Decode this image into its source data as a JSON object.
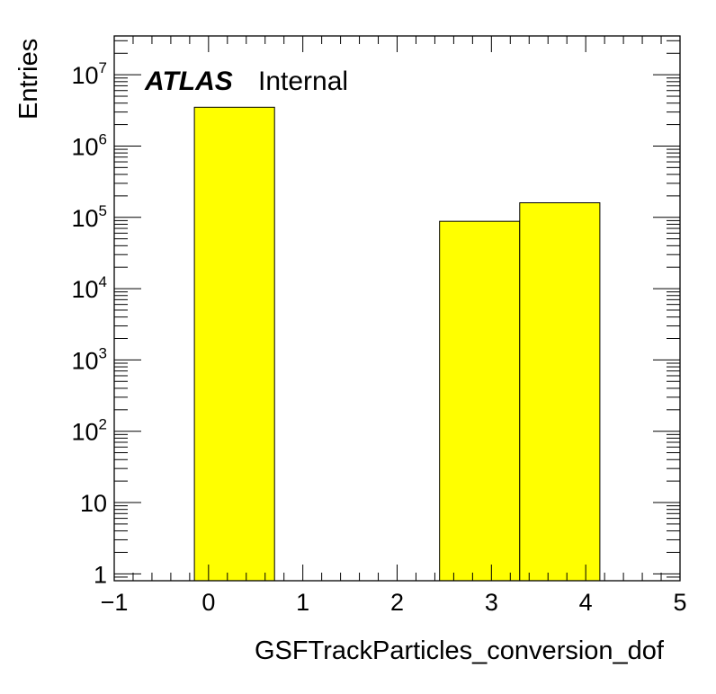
{
  "chart_data": {
    "type": "bar",
    "title": "",
    "xlabel": "GSFTrackParticles_conversion_dof",
    "ylabel": "Entries",
    "ylog": true,
    "xlim": [
      -1,
      5
    ],
    "ylim": [
      0.8,
      35000000
    ],
    "bins": [
      {
        "low": -0.15,
        "high": 0.7,
        "value": 3500000
      },
      {
        "low": 0.7,
        "high": 2.45,
        "value": 0
      },
      {
        "low": 2.45,
        "high": 3.3,
        "value": 88000
      },
      {
        "low": 3.3,
        "high": 4.15,
        "value": 160000
      }
    ],
    "fill_color": "#ffff00",
    "edge_color": "#000000",
    "x_tick_labels": [
      "−1",
      "0",
      "1",
      "2",
      "3",
      "4",
      "5"
    ],
    "y_tick_labels": [
      {
        "value": 1,
        "base": "1",
        "exp": ""
      },
      {
        "value": 10,
        "base": "10",
        "exp": ""
      },
      {
        "value": 100,
        "base": "10",
        "exp": "2"
      },
      {
        "value": 1000,
        "base": "10",
        "exp": "3"
      },
      {
        "value": 10000,
        "base": "10",
        "exp": "4"
      },
      {
        "value": 100000,
        "base": "10",
        "exp": "5"
      },
      {
        "value": 1000000,
        "base": "10",
        "exp": "6"
      },
      {
        "value": 10000000,
        "base": "10",
        "exp": "7"
      }
    ],
    "annotations": {
      "atlas": "ATLAS",
      "status": "Internal"
    },
    "grid": false
  }
}
